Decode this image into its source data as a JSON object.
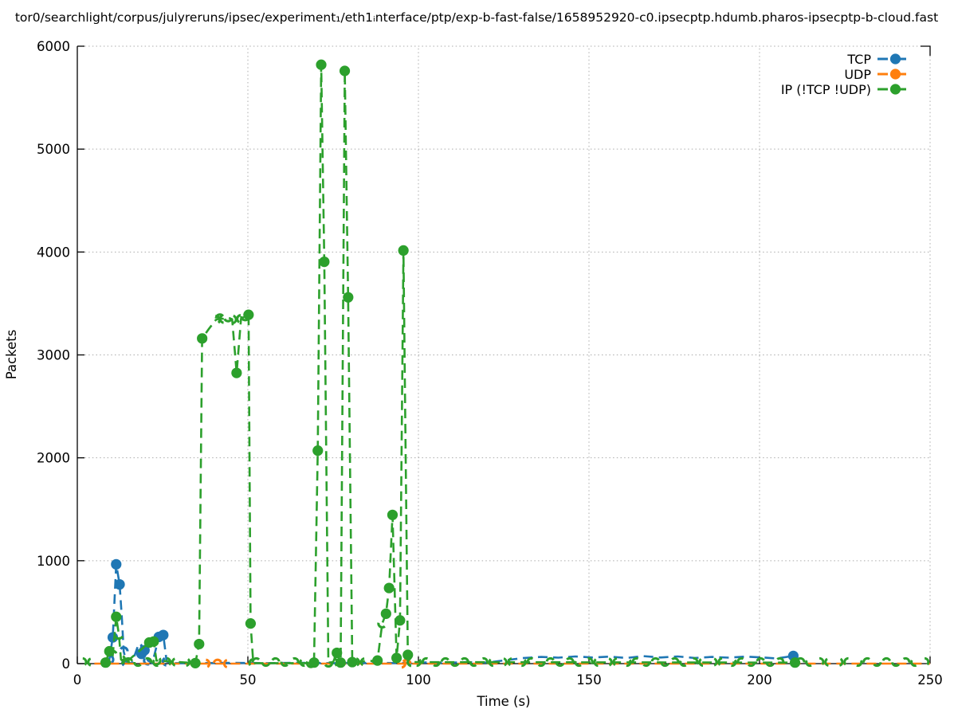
{
  "title": "tor0/searchlight/corpus/julyreruns/ipsec/experiment₁/eth1ᵢnterface/ptp/exp-b-fast-false/1658952920-c0.ipsecptp.hdumb.pharos-ipsecptp-b-cloud.fast",
  "chart_data": {
    "type": "line",
    "xlabel": "Time (s)",
    "ylabel": "Packets",
    "xlim": [
      0,
      250
    ],
    "ylim": [
      0,
      6000
    ],
    "xticks": [
      0,
      50,
      100,
      150,
      200,
      250
    ],
    "yticks": [
      0,
      1000,
      2000,
      3000,
      4000,
      5000,
      6000
    ],
    "grid": "dotted",
    "legend_position": "top-right-inside",
    "point_format": "[time_s, packets, marker_flag 1=filled-dot 2=partial-arc 0=line-only]",
    "series": [
      {
        "name": "TCP",
        "color": "#1f77b4",
        "linestyle": "dashed",
        "marker": "circle",
        "points": [
          [
            8.6,
            5,
            0
          ],
          [
            9.4,
            40,
            2
          ],
          [
            10.4,
            255,
            1
          ],
          [
            11.4,
            965,
            1
          ],
          [
            12.4,
            770,
            1
          ],
          [
            13.1,
            420,
            0
          ],
          [
            13.6,
            120,
            2
          ],
          [
            14.4,
            10,
            2
          ],
          [
            16,
            5,
            0
          ],
          [
            17.7,
            165,
            2
          ],
          [
            18.8,
            95,
            1
          ],
          [
            19.7,
            130,
            1
          ],
          [
            20.7,
            30,
            2
          ],
          [
            22,
            5,
            0
          ],
          [
            23.9,
            260,
            1
          ],
          [
            25.2,
            278,
            1
          ],
          [
            26.2,
            20,
            2
          ],
          [
            28,
            5,
            0
          ],
          [
            35,
            5,
            0
          ],
          [
            45,
            8,
            0
          ],
          [
            55,
            5,
            0
          ],
          [
            65,
            8,
            0
          ],
          [
            75,
            5,
            0
          ],
          [
            85,
            8,
            0
          ],
          [
            95,
            5,
            0
          ],
          [
            102,
            12,
            0
          ],
          [
            108,
            8,
            0
          ],
          [
            114,
            15,
            0
          ],
          [
            120,
            10,
            0
          ],
          [
            126,
            35,
            0
          ],
          [
            131,
            55,
            0
          ],
          [
            136,
            65,
            0
          ],
          [
            141,
            58,
            0
          ],
          [
            146,
            70,
            0
          ],
          [
            151,
            60,
            0
          ],
          [
            156,
            68,
            0
          ],
          [
            161,
            55,
            0
          ],
          [
            166,
            73,
            0
          ],
          [
            171,
            60,
            0
          ],
          [
            176,
            70,
            0
          ],
          [
            181,
            55,
            0
          ],
          [
            186,
            65,
            0
          ],
          [
            191,
            58,
            0
          ],
          [
            196,
            68,
            0
          ],
          [
            201,
            60,
            0
          ],
          [
            205,
            50,
            0
          ],
          [
            209.9,
            75,
            1
          ],
          [
            210.8,
            8,
            0
          ],
          [
            213,
            4,
            0
          ]
        ]
      },
      {
        "name": "UDP",
        "color": "#ff7f0e",
        "linestyle": "dashed",
        "marker": "circle",
        "points": [
          [
            5,
            0,
            0
          ],
          [
            37.6,
            0,
            2
          ],
          [
            41.1,
            0,
            2
          ],
          [
            44.2,
            0,
            2
          ],
          [
            60,
            0,
            0
          ],
          [
            95,
            0,
            2
          ],
          [
            96.5,
            0,
            2
          ],
          [
            150,
            0,
            0
          ],
          [
            250,
            0,
            0
          ]
        ]
      },
      {
        "name": "IP (!TCP  !UDP)",
        "color": "#2ca02c",
        "linestyle": "dashed",
        "marker": "circle",
        "baseline_arcs": {
          "value": 0,
          "step": 2.8,
          "ranges": [
            [
              1.5,
              8
            ],
            [
              15,
              34
            ],
            [
              52.5,
              68
            ],
            [
              81.5,
              87
            ],
            [
              99.5,
              208
            ],
            [
              212,
              249
            ]
          ]
        },
        "points": [
          [
            8.3,
            10,
            1
          ],
          [
            9.4,
            120,
            1
          ],
          [
            10.4,
            85,
            2
          ],
          [
            11.4,
            455,
            1
          ],
          [
            12.2,
            280,
            2
          ],
          [
            12.8,
            40,
            2
          ],
          [
            14,
            5,
            2
          ],
          [
            21.1,
            205,
            1
          ],
          [
            22.4,
            215,
            1
          ],
          [
            23.2,
            30,
            2
          ],
          [
            34.6,
            5,
            1
          ],
          [
            35.7,
            190,
            1
          ],
          [
            36.6,
            3160,
            1
          ],
          [
            38.5,
            3250,
            0
          ],
          [
            40.6,
            3340,
            2
          ],
          [
            41.8,
            3355,
            2
          ],
          [
            43,
            3350,
            2
          ],
          [
            44.2,
            3365,
            2
          ],
          [
            45.4,
            3345,
            2
          ],
          [
            46.7,
            2825,
            1
          ],
          [
            48,
            3350,
            2
          ],
          [
            49.2,
            3375,
            2
          ],
          [
            50.2,
            3390,
            1
          ],
          [
            50.8,
            390,
            1
          ],
          [
            51.6,
            5,
            2
          ],
          [
            68.5,
            5,
            2
          ],
          [
            69.4,
            10,
            1
          ],
          [
            70.5,
            2070,
            1
          ],
          [
            71.5,
            5820,
            1
          ],
          [
            72.4,
            3905,
            1
          ],
          [
            73.6,
            10,
            2
          ],
          [
            75,
            15,
            2
          ],
          [
            76.1,
            105,
            1
          ],
          [
            77.2,
            10,
            1
          ],
          [
            78.4,
            5760,
            1
          ],
          [
            79.4,
            3560,
            1
          ],
          [
            80.6,
            15,
            1
          ],
          [
            88,
            30,
            1
          ],
          [
            89.4,
            390,
            2
          ],
          [
            90.5,
            485,
            1
          ],
          [
            91.4,
            735,
            1
          ],
          [
            92.4,
            1445,
            1
          ],
          [
            93.6,
            55,
            1
          ],
          [
            94.6,
            420,
            1
          ],
          [
            95.6,
            4015,
            1
          ],
          [
            96.9,
            85,
            1
          ],
          [
            98,
            15,
            2
          ],
          [
            210.4,
            10,
            1
          ]
        ]
      }
    ]
  }
}
